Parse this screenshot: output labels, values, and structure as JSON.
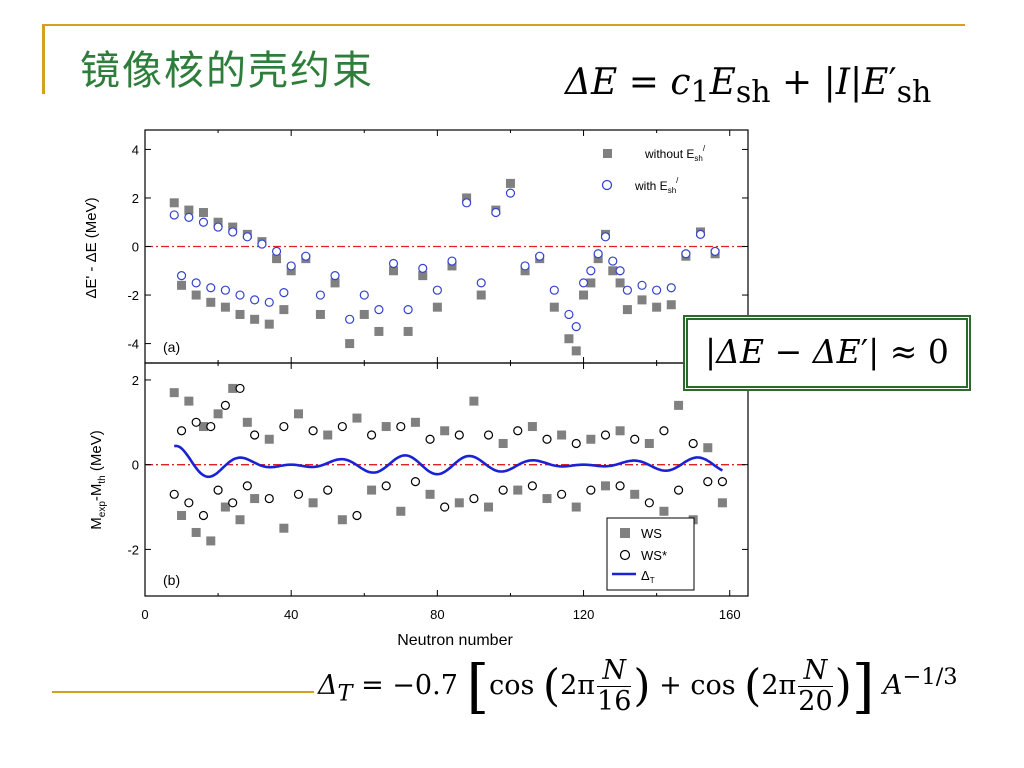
{
  "slide": {
    "title": "镜像核的壳约束",
    "formula_top": "ΔE = c₁E_sh + |I|E′_sh",
    "formula_boxed": "|ΔE − ΔE′| ≈ 0",
    "formula_bottom": "Δ_T = −0.7 [cos(2πN/16) + cos(2πN/20)] A^(−1/3)"
  },
  "chart_data": [
    {
      "type": "scatter",
      "panel_label": "(a)",
      "ylabel": "ΔE′ - ΔE (MeV)",
      "xlim": [
        0,
        165
      ],
      "ylim": [
        -4.8,
        4.8
      ],
      "yticks": [
        -4,
        -2,
        0,
        2,
        4
      ],
      "reference_line": 0,
      "legend_position": "top-right",
      "series": [
        {
          "name": "without E′sh",
          "marker": "filled-square",
          "color": "#808080",
          "x": [
            8,
            10,
            12,
            14,
            16,
            18,
            20,
            22,
            24,
            26,
            28,
            30,
            32,
            34,
            36,
            38,
            40,
            44,
            48,
            52,
            56,
            60,
            64,
            68,
            72,
            76,
            80,
            84,
            88,
            92,
            96,
            100,
            104,
            108,
            112,
            116,
            118,
            120,
            122,
            124,
            126,
            128,
            130,
            132,
            136,
            140,
            144,
            148,
            152,
            156
          ],
          "y": [
            1.8,
            -1.6,
            1.5,
            -2.0,
            1.4,
            -2.3,
            1.0,
            -2.5,
            0.8,
            -2.8,
            0.5,
            -3.0,
            0.2,
            -3.2,
            -0.5,
            -2.6,
            -1.0,
            -0.5,
            -2.8,
            -1.5,
            -4.0,
            -2.8,
            -3.5,
            -1.0,
            -3.5,
            -1.2,
            -2.5,
            -0.8,
            2.0,
            -2.0,
            1.5,
            2.6,
            -1.0,
            -0.5,
            -2.5,
            -3.8,
            -4.3,
            -2.0,
            -1.5,
            -0.5,
            0.5,
            -1.0,
            -1.5,
            -2.6,
            -2.2,
            -2.5,
            -2.4,
            -0.4,
            0.6,
            -0.3
          ]
        },
        {
          "name": "with E′sh",
          "marker": "open-circle",
          "color": "#3344cc",
          "x": [
            8,
            10,
            12,
            14,
            16,
            18,
            20,
            22,
            24,
            26,
            28,
            30,
            32,
            34,
            36,
            38,
            40,
            44,
            48,
            52,
            56,
            60,
            64,
            68,
            72,
            76,
            80,
            84,
            88,
            92,
            96,
            100,
            104,
            108,
            112,
            116,
            118,
            120,
            122,
            124,
            126,
            128,
            130,
            132,
            136,
            140,
            144,
            148,
            152,
            156
          ],
          "y": [
            1.3,
            -1.2,
            1.2,
            -1.5,
            1.0,
            -1.7,
            0.8,
            -1.8,
            0.6,
            -2.0,
            0.4,
            -2.2,
            0.1,
            -2.3,
            -0.2,
            -1.9,
            -0.8,
            -0.4,
            -2.0,
            -1.2,
            -3.0,
            -2.0,
            -2.6,
            -0.7,
            -2.6,
            -0.9,
            -1.8,
            -0.6,
            1.8,
            -1.5,
            1.4,
            2.2,
            -0.8,
            -0.4,
            -1.8,
            -2.8,
            -3.3,
            -1.5,
            -1.0,
            -0.3,
            0.4,
            -0.6,
            -1.0,
            -1.8,
            -1.6,
            -1.8,
            -1.7,
            -0.3,
            0.5,
            -0.2
          ]
        }
      ]
    },
    {
      "type": "scatter",
      "panel_label": "(b)",
      "xlabel": "Neutron number",
      "ylabel": "M_exp-M_th (MeV)",
      "xlim": [
        0,
        165
      ],
      "ylim": [
        -3.1,
        2.4
      ],
      "xticks": [
        0,
        40,
        80,
        120,
        160
      ],
      "yticks": [
        -2,
        0,
        2
      ],
      "reference_line": 0,
      "legend_position": "bottom-right",
      "series": [
        {
          "name": "WS",
          "marker": "filled-square",
          "color": "#808080",
          "x": [
            8,
            10,
            12,
            14,
            16,
            18,
            20,
            22,
            24,
            26,
            28,
            30,
            34,
            38,
            42,
            46,
            50,
            54,
            58,
            62,
            66,
            70,
            74,
            78,
            82,
            86,
            90,
            94,
            98,
            102,
            106,
            110,
            114,
            118,
            122,
            126,
            130,
            134,
            138,
            142,
            146,
            150,
            154,
            158
          ],
          "y": [
            1.7,
            -1.2,
            1.5,
            -1.6,
            0.9,
            -1.8,
            1.2,
            -1.0,
            1.8,
            -1.3,
            1.0,
            -0.8,
            0.6,
            -1.5,
            1.2,
            -0.9,
            0.7,
            -1.3,
            1.1,
            -0.6,
            0.9,
            -1.1,
            1.0,
            -0.7,
            0.8,
            -0.9,
            1.5,
            -1.0,
            0.5,
            -0.6,
            0.9,
            -0.8,
            0.7,
            -1.0,
            0.6,
            -0.5,
            0.8,
            -0.7,
            0.5,
            -1.1,
            1.4,
            -1.3,
            0.4,
            -0.9
          ]
        },
        {
          "name": "WS*",
          "marker": "open-circle",
          "color": "#000000",
          "x": [
            8,
            10,
            12,
            14,
            16,
            18,
            20,
            22,
            24,
            26,
            28,
            30,
            34,
            38,
            42,
            46,
            50,
            54,
            58,
            62,
            66,
            70,
            74,
            78,
            82,
            86,
            90,
            94,
            98,
            102,
            106,
            110,
            114,
            118,
            122,
            126,
            130,
            134,
            138,
            142,
            146,
            150,
            154,
            158
          ],
          "y": [
            -0.7,
            0.8,
            -0.9,
            1.0,
            -1.2,
            0.9,
            -0.6,
            1.4,
            -0.9,
            1.8,
            -0.5,
            0.7,
            -0.8,
            0.9,
            -0.7,
            0.8,
            -0.6,
            0.9,
            -1.2,
            0.7,
            -0.5,
            0.9,
            -0.4,
            0.6,
            -1.0,
            0.7,
            -0.8,
            0.7,
            -0.6,
            0.8,
            -0.5,
            0.6,
            -0.7,
            0.5,
            -0.6,
            0.7,
            -0.5,
            0.6,
            -0.9,
            0.8,
            -0.6,
            0.5,
            -0.4,
            -0.4
          ]
        },
        {
          "name": "Δ_T",
          "marker": "line",
          "color": "#1a22d6",
          "x": [],
          "y": []
        }
      ]
    }
  ],
  "legend": {
    "a1": "without E",
    "a1_sub": "sh",
    "a1_sup": "/",
    "a2": "with  E",
    "a2_sub": "sh",
    "a2_sup": "/",
    "b1": "WS",
    "b2": "WS*",
    "b3": "Δ",
    "b3_sub": "T"
  },
  "labels": {
    "panel_a": "(a)",
    "panel_b": "(b)",
    "xlabel": "Neutron number",
    "ylabel_a": "ΔE' - ΔE (MeV)",
    "ylabel_b_1": "M",
    "ylabel_b_sub1": "exp",
    "ylabel_b_2": "-M",
    "ylabel_b_sub2": "th",
    "ylabel_b_3": " (MeV)",
    "ytick_a": [
      "4",
      "2",
      "0",
      "-2",
      "-4"
    ],
    "ytick_b": [
      "2",
      "0",
      "-2"
    ],
    "xtick": [
      "0",
      "40",
      "80",
      "120",
      "160"
    ]
  },
  "colors": {
    "accent_gold": "#d4a020",
    "title_green": "#2e7d3a",
    "box_green": "#2a6b2a",
    "ref_line": "#dd2222"
  }
}
